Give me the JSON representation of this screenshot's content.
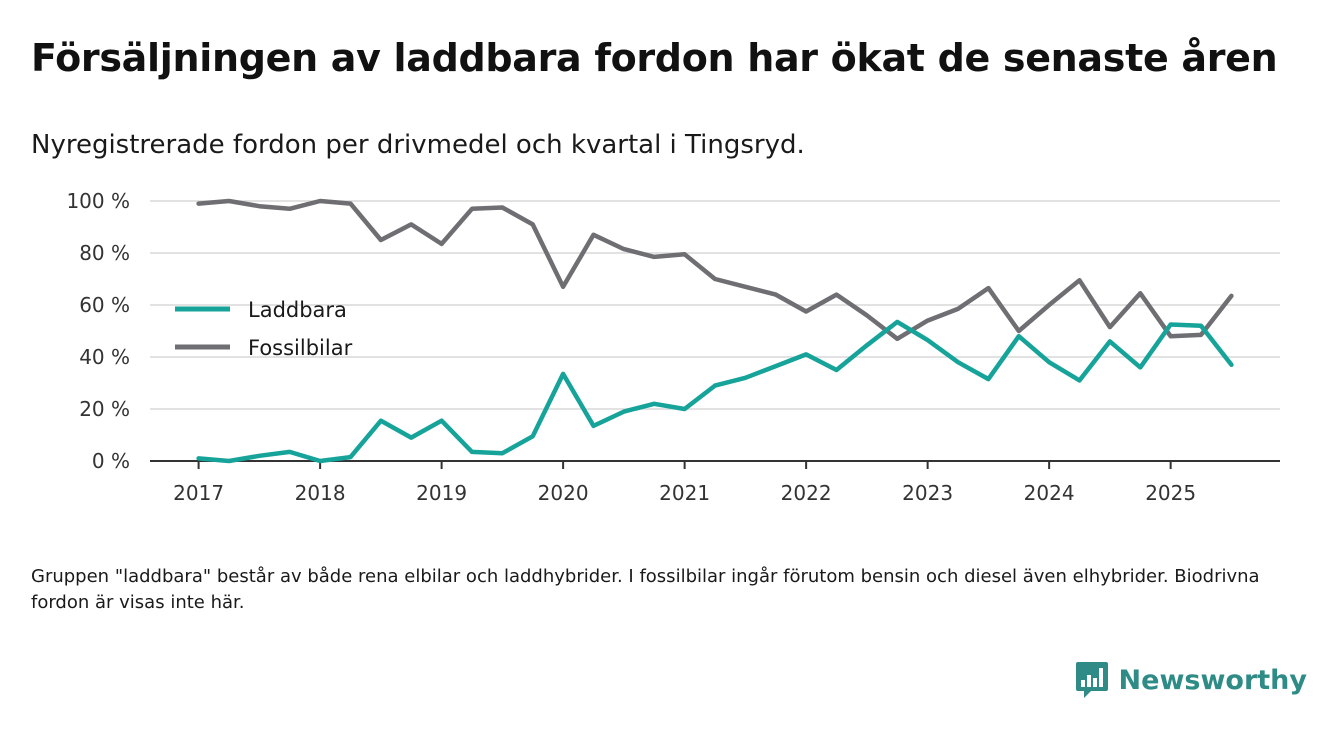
{
  "title": "Försäljningen av laddbara fordon har ökat de senaste åren",
  "subtitle": "Nyregistrerade fordon per drivmedel och kvartal i Tingsryd.",
  "note": "Gruppen \"laddbara\" består av både rena elbilar och laddhybrider. I fossilbilar ingår förutom bensin och diesel även elhybrider. Biodrivna fordon är visas inte här.",
  "brand": {
    "name": "Newsworthy",
    "color": "#2e8b86",
    "icon": "bar-chart-bubble-icon"
  },
  "chart_data": {
    "type": "line",
    "title": "Försäljningen av laddbara fordon har ökat de senaste åren",
    "xlabel": "",
    "ylabel": "",
    "xlim": [
      2016.6,
      2025.9
    ],
    "ylim": [
      0,
      100
    ],
    "grid": true,
    "legend_position": "left-middle",
    "x_ticks": [
      2017,
      2018,
      2019,
      2020,
      2021,
      2022,
      2023,
      2024,
      2025
    ],
    "x_tick_labels": [
      "2017",
      "2018",
      "2019",
      "2020",
      "2021",
      "2022",
      "2023",
      "2024",
      "2025"
    ],
    "y_ticks": [
      0,
      20,
      40,
      60,
      80,
      100
    ],
    "y_tick_labels": [
      "0 %",
      "20 %",
      "40 %",
      "60 %",
      "80 %",
      "100 %"
    ],
    "x": [
      2017.0,
      2017.25,
      2017.5,
      2017.75,
      2018.0,
      2018.25,
      2018.5,
      2018.75,
      2019.0,
      2019.25,
      2019.5,
      2019.75,
      2020.0,
      2020.25,
      2020.5,
      2020.75,
      2021.0,
      2021.25,
      2021.5,
      2021.75,
      2022.0,
      2022.25,
      2022.5,
      2022.75,
      2023.0,
      2023.25,
      2023.5,
      2023.75,
      2024.0,
      2024.25,
      2024.5,
      2024.75,
      2025.0,
      2025.25,
      2025.5
    ],
    "series": [
      {
        "name": "Laddbara",
        "color": "#16a39a",
        "values": [
          1,
          0,
          2,
          3.5,
          0,
          1.5,
          15.5,
          9,
          15.5,
          3.5,
          3,
          9.5,
          33.5,
          13.5,
          19,
          22,
          20,
          29,
          32,
          36.5,
          41,
          35,
          44.5,
          53.5,
          46.5,
          38,
          31.5,
          48,
          38,
          31,
          46,
          36,
          52.5,
          52,
          37
        ]
      },
      {
        "name": "Fossilbilar",
        "color": "#6e6e73",
        "values": [
          99,
          100,
          98,
          97,
          100,
          99,
          85,
          91,
          83.5,
          97,
          97.5,
          91,
          67,
          87,
          81.5,
          78.5,
          79.5,
          70,
          67,
          64,
          57.5,
          64,
          56,
          47,
          54,
          58.5,
          66.5,
          50,
          60,
          69.5,
          51.5,
          64.5,
          48,
          48.5,
          63.5
        ]
      }
    ]
  }
}
